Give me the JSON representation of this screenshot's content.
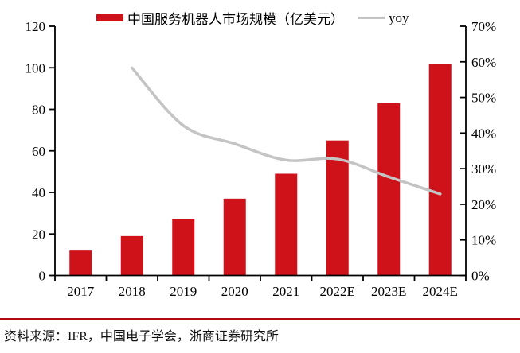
{
  "legend": {
    "bar_label": "中国服务机器人市场规模（亿美元）",
    "line_label": "yoy"
  },
  "footer": {
    "source_text": "资料来源：IFR，中国电子学会，浙商证券研究所"
  },
  "colors": {
    "bar_red": "#cf1219",
    "line_gray": "#c4c4c4",
    "axis_black": "#000000",
    "divider_red": "#b00b10",
    "text_black": "#000000"
  },
  "chart_data": {
    "type": "bar",
    "subtype": "bar-with-secondary-line",
    "categories": [
      "2017",
      "2018",
      "2019",
      "2020",
      "2021",
      "2022E",
      "2023E",
      "2024E"
    ],
    "series": [
      {
        "name": "中国服务机器人市场规模（亿美元）",
        "type": "bar",
        "axis": "left",
        "values": [
          12,
          19,
          27,
          37,
          49,
          65,
          83,
          102
        ]
      },
      {
        "name": "yoy",
        "type": "line",
        "axis": "right",
        "start_category_index": 1,
        "values": [
          58.3,
          42.1,
          37.0,
          32.4,
          32.7,
          27.7,
          22.9
        ]
      }
    ],
    "left_axis": {
      "min": 0,
      "max": 120,
      "step": 20,
      "tick_labels": [
        "0",
        "20",
        "40",
        "60",
        "80",
        "100",
        "120"
      ]
    },
    "right_axis": {
      "min": 0,
      "max": 70,
      "step": 10,
      "tick_labels": [
        "0%",
        "10%",
        "20%",
        "30%",
        "40%",
        "50%",
        "60%",
        "70%"
      ]
    },
    "grid": false,
    "legend_position": "top"
  }
}
